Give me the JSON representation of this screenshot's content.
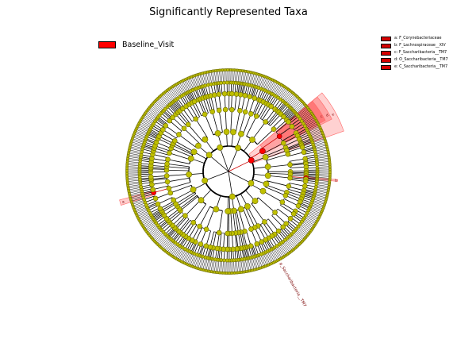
{
  "title": "Significantly Represented Taxa",
  "legend_group": {
    "label": "Baseline_Visit",
    "color": "#ff0000"
  },
  "legend_taxa": [
    {
      "label": "a: F_Corynebacteriaceae"
    },
    {
      "label": "b: F_Lachnospiraceae__XIV"
    },
    {
      "label": "c: F_Saccharibacteria__TM7"
    },
    {
      "label": "d: O_Saccharibacteria__TM7"
    },
    {
      "label": "e: C_Saccharibacteria__TM7"
    }
  ],
  "highlight_labels": {
    "a": "a",
    "b": "b",
    "cde_1": "c",
    "cde_2": "d",
    "cde_3": "e",
    "phylum": "p_Saccharibacteria__TM7"
  },
  "colors": {
    "node": "#bfbf00",
    "node_edge": "#6b6b00",
    "significant": "#ff0000",
    "shade": "#ff0000"
  }
}
